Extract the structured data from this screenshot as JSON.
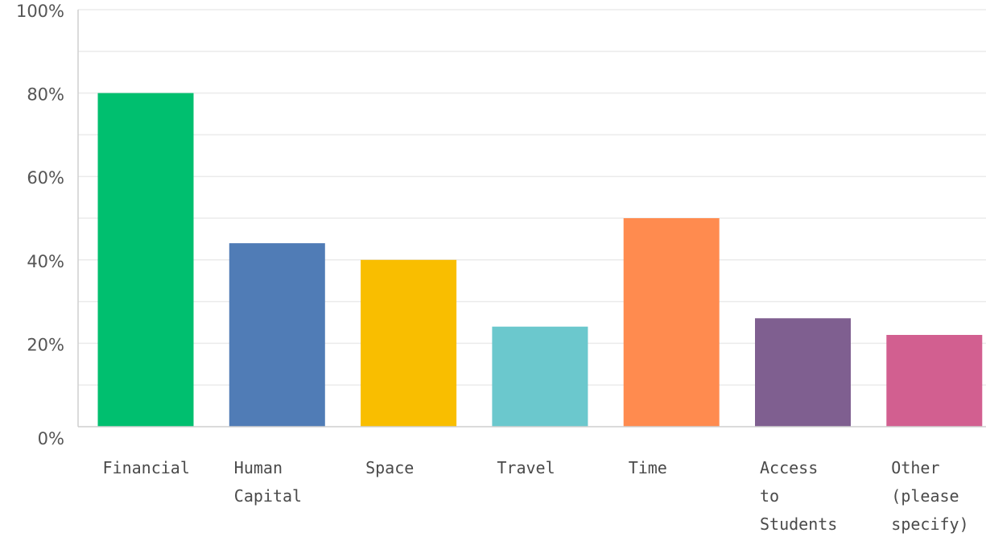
{
  "chart_data": {
    "type": "bar",
    "categories": [
      [
        "Financial"
      ],
      [
        "Human",
        "Capital"
      ],
      [
        "Space"
      ],
      [
        "Travel"
      ],
      [
        "Time"
      ],
      [
        "Access",
        "to",
        "Students"
      ],
      [
        "Other",
        "(please",
        "specify)"
      ]
    ],
    "values": [
      80,
      44,
      40,
      24,
      50,
      26,
      22
    ],
    "colors": [
      "#00bf6f",
      "#507cb6",
      "#f9be00",
      "#6bc8cd",
      "#ff8b4f",
      "#7f5f90",
      "#d25f90"
    ],
    "y_ticks": [
      "0%",
      "20%",
      "40%",
      "60%",
      "80%",
      "100%"
    ],
    "ylim": [
      0,
      100
    ],
    "grid": true,
    "title": "",
    "xlabel": "",
    "ylabel": ""
  }
}
